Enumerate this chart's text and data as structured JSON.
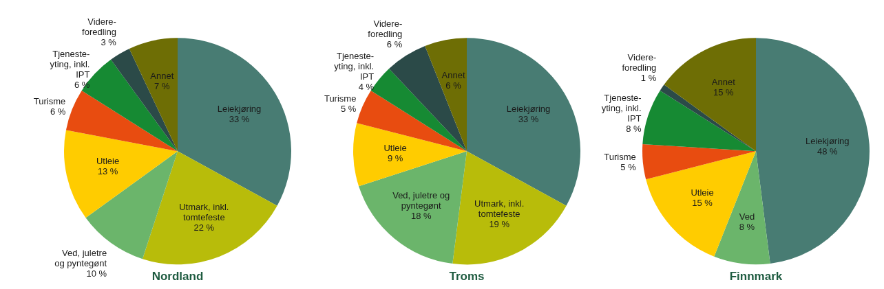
{
  "chart_data": [
    {
      "type": "pie",
      "title": "Nordland",
      "categories": [
        "Leiekjøring",
        "Utmark, inkl. tomtefeste",
        "Ved, juletre og pyntegønt",
        "Utleie",
        "Turisme",
        "Tjeneste-yting, inkl. IPT",
        "Videre-foredling",
        "Annet"
      ],
      "values": [
        33,
        22,
        10,
        13,
        6,
        6,
        3,
        7
      ],
      "colors": [
        "#487c73",
        "#b8bc0a",
        "#6bb56b",
        "#ffcc00",
        "#e84c10",
        "#168a33",
        "#2b4a48",
        "#6e6e05"
      ],
      "value_labels": [
        "33 %",
        "22 %",
        "10 %",
        "13 %",
        "6 %",
        "6 %",
        "3 %",
        "7 %"
      ]
    },
    {
      "type": "pie",
      "title": "Troms",
      "categories": [
        "Leiekjøring",
        "Utmark, inkl. tomtefeste",
        "Ved, juletre og pyntegønt",
        "Utleie",
        "Turisme",
        "Tjeneste-yting, inkl. IPT",
        "Videre-foredling",
        "Annet"
      ],
      "values": [
        33,
        19,
        18,
        9,
        5,
        4,
        6,
        6
      ],
      "colors": [
        "#487c73",
        "#b8bc0a",
        "#6bb56b",
        "#ffcc00",
        "#e84c10",
        "#168a33",
        "#2b4a48",
        "#6e6e05"
      ],
      "value_labels": [
        "33 %",
        "19 %",
        "18 %",
        "9 %",
        "5 %",
        "4 %",
        "6 %",
        "6 %"
      ]
    },
    {
      "type": "pie",
      "title": "Finnmark",
      "categories": [
        "Leiekjøring",
        "Ved",
        "Utleie",
        "Turisme",
        "Tjeneste-yting, inkl. IPT",
        "Videre-foredling",
        "Annet"
      ],
      "values": [
        48,
        8,
        15,
        5,
        8,
        1,
        15
      ],
      "colors": [
        "#487c73",
        "#6bb56b",
        "#ffcc00",
        "#e84c10",
        "#168a33",
        "#2b4a48",
        "#6e6e05"
      ],
      "value_labels": [
        "48 %",
        "8 %",
        "15 %",
        "5 %",
        "8 %",
        "1 %",
        "15 %"
      ]
    }
  ]
}
